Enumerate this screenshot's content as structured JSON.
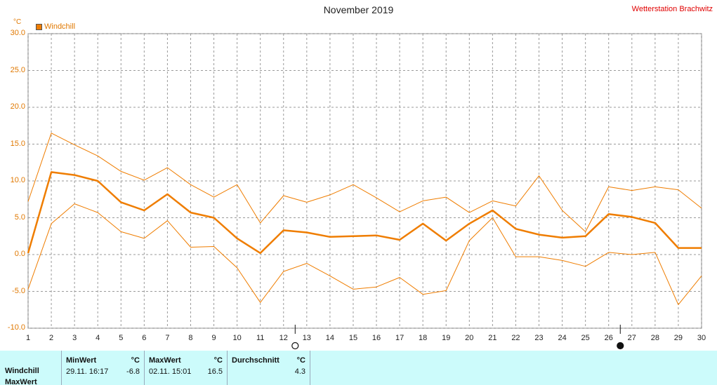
{
  "header": {
    "title": "November 2019",
    "station": "Wetterstation Brachwitz",
    "unit": "°C",
    "legend_label": "Windchill"
  },
  "chart_data": {
    "type": "line",
    "title": "November 2019",
    "ylabel": "°C",
    "ylim": [
      -10,
      30
    ],
    "yticks": [
      "30.0",
      "25.0",
      "20.0",
      "15.0",
      "10.0",
      "5.0",
      "0.0",
      "-5.0",
      "-10.0"
    ],
    "x": [
      1,
      2,
      3,
      4,
      5,
      6,
      7,
      8,
      9,
      10,
      11,
      12,
      13,
      14,
      15,
      16,
      17,
      18,
      19,
      20,
      21,
      22,
      23,
      24,
      25,
      26,
      27,
      28,
      29,
      30
    ],
    "grid": true,
    "legend_position": "top-left",
    "series": [
      {
        "name": "Windchill",
        "color": "#ef7d00",
        "values": [
          0.2,
          11.2,
          10.8,
          10.0,
          7.1,
          6.0,
          8.2,
          5.7,
          5.0,
          2.2,
          0.2,
          3.3,
          3.0,
          2.4,
          2.5,
          2.6,
          2.0,
          4.2,
          1.9,
          4.2,
          6.0,
          3.5,
          2.7,
          2.3,
          2.5,
          5.5,
          5.1,
          4.3,
          0.9,
          0.9
        ]
      },
      {
        "name": "MaxWert",
        "color": "#ef7d00",
        "values": [
          7.2,
          16.5,
          14.9,
          13.4,
          11.3,
          10.1,
          11.8,
          9.5,
          7.8,
          9.5,
          4.3,
          8.0,
          7.1,
          8.1,
          9.5,
          7.7,
          5.8,
          7.3,
          7.8,
          5.7,
          7.3,
          6.6,
          10.7,
          6.0,
          3.1,
          9.2,
          8.7,
          9.2,
          8.8,
          6.3
        ]
      },
      {
        "name": "MinWert",
        "color": "#ef7d00",
        "values": [
          -4.7,
          4.2,
          6.9,
          5.7,
          3.1,
          2.2,
          4.6,
          1.0,
          1.1,
          -1.8,
          -6.5,
          -2.3,
          -1.2,
          -2.9,
          -4.7,
          -4.4,
          -3.1,
          -5.4,
          -4.9,
          1.9,
          5.0,
          -0.3,
          -0.3,
          -0.8,
          -1.6,
          0.3,
          0.0,
          0.3,
          -6.8,
          -2.9
        ]
      }
    ],
    "moon_phases": [
      {
        "day": 12.5,
        "phase": "full-moon"
      },
      {
        "day": 26.5,
        "phase": "new-moon"
      }
    ]
  },
  "summary": {
    "minwert_header": "MinWert",
    "minwert_unit": "°C",
    "maxwert_header": "MaxWert",
    "maxwert_unit": "°C",
    "avg_header": "Durchschnitt",
    "avg_unit": "°C",
    "rows": [
      {
        "label": "Windchill",
        "min_time": "29.11.  16:17",
        "min_value": "-6.8",
        "max_time": "02.11.  15:01",
        "max_value": "16.5",
        "avg_value": "4.3"
      },
      {
        "label": "MaxWert"
      }
    ]
  }
}
